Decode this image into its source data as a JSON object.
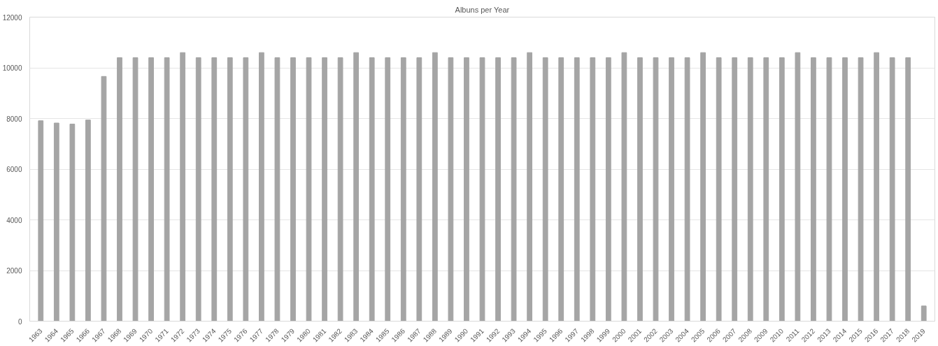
{
  "chart_data": {
    "type": "bar",
    "title": "Albuns per Year",
    "categories": [
      "1963",
      "1964",
      "1965",
      "1966",
      "1967",
      "1968",
      "1969",
      "1970",
      "1971",
      "1972",
      "1973",
      "1974",
      "1975",
      "1976",
      "1977",
      "1978",
      "1979",
      "1980",
      "1981",
      "1982",
      "1983",
      "1984",
      "1985",
      "1986",
      "1987",
      "1988",
      "1989",
      "1990",
      "1991",
      "1992",
      "1993",
      "1994",
      "1995",
      "1996",
      "1997",
      "1998",
      "1999",
      "2000",
      "2001",
      "2002",
      "2003",
      "2004",
      "2005",
      "2006",
      "2007",
      "2008",
      "2009",
      "2010",
      "2011",
      "2012",
      "2013",
      "2014",
      "2015",
      "2016",
      "2017",
      "2018",
      "2019"
    ],
    "values": [
      7910,
      7820,
      7780,
      7940,
      9660,
      10400,
      10400,
      10400,
      10400,
      10600,
      10400,
      10400,
      10400,
      10400,
      10600,
      10400,
      10400,
      10400,
      10400,
      10400,
      10600,
      10400,
      10400,
      10400,
      10400,
      10600,
      10400,
      10400,
      10400,
      10400,
      10400,
      10600,
      10400,
      10400,
      10400,
      10400,
      10400,
      10600,
      10400,
      10400,
      10400,
      10400,
      10600,
      10400,
      10400,
      10400,
      10400,
      10400,
      10600,
      10400,
      10400,
      10400,
      10400,
      10600,
      10400,
      10400,
      600
    ],
    "color": "#a5a5a5",
    "ylim": [
      0,
      12000
    ],
    "yticks": [
      0,
      2000,
      4000,
      6000,
      8000,
      10000,
      12000
    ],
    "grid": "y"
  }
}
